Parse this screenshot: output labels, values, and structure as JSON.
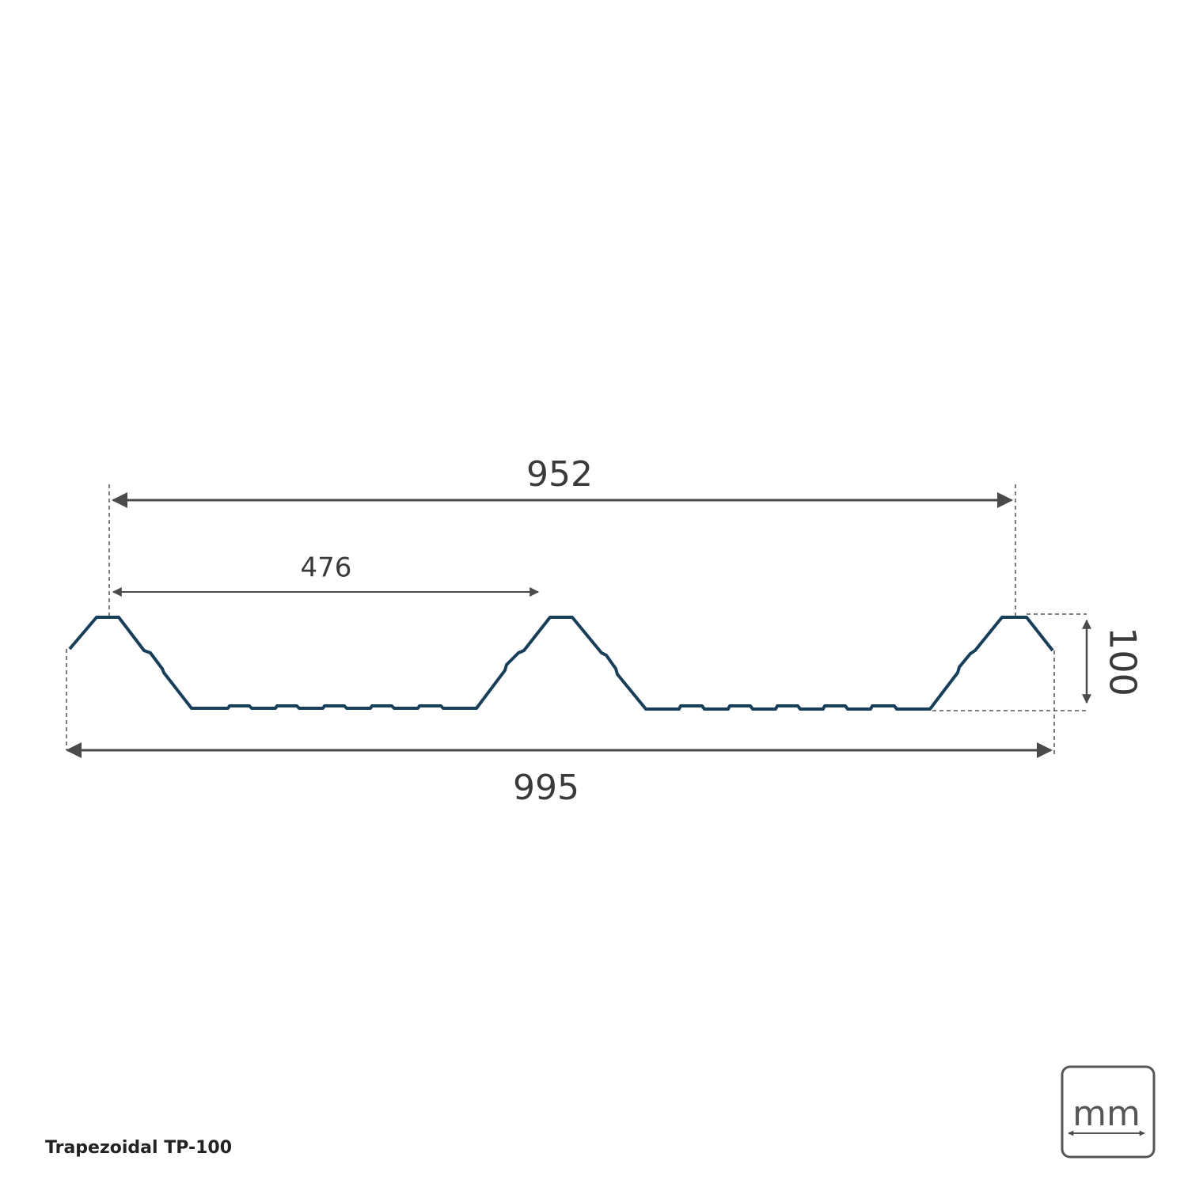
{
  "dimensions": {
    "overall_pitch": "952",
    "half_pitch": "476",
    "total_width": "995",
    "height": "100"
  },
  "caption": "Trapezoidal TP-100",
  "unit_icon": "mm"
}
